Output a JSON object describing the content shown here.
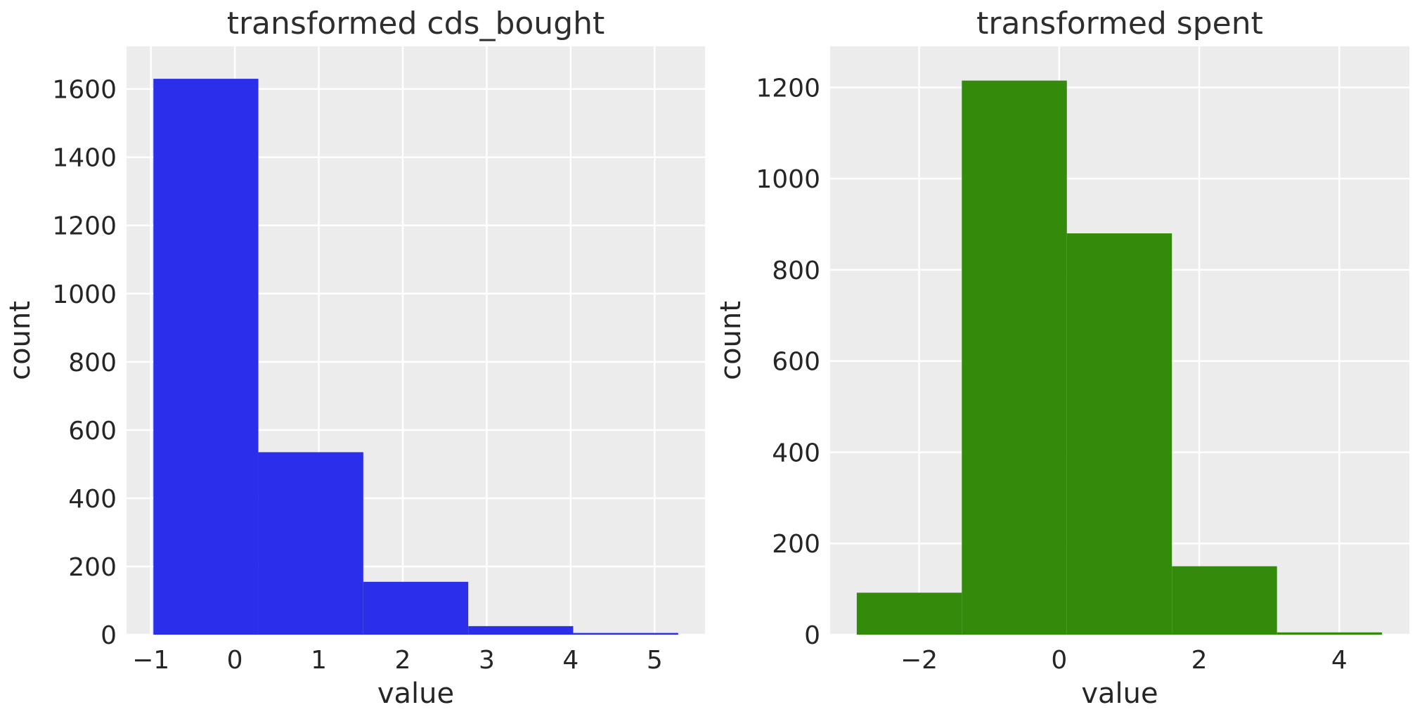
{
  "figure": {
    "background": "#ffffff",
    "plot_background": "#ececec",
    "grid_color": "#ffffff",
    "text_color": "#262626",
    "grid": true
  },
  "chart_data": [
    {
      "type": "bar",
      "subtype": "histogram",
      "title": "transformed cds_bought",
      "xlabel": "value",
      "ylabel": "count",
      "bar_color": "#2b2fe9",
      "bar_color_name": "blue",
      "bin_edges": [
        -0.97,
        0.28,
        1.53,
        2.78,
        4.03,
        5.28
      ],
      "counts": [
        1630,
        535,
        155,
        25,
        5
      ],
      "xlim": [
        -1.29,
        5.6
      ],
      "ylim": [
        0,
        1725
      ],
      "xticks": [
        -1,
        0,
        1,
        2,
        3,
        4,
        5
      ],
      "xtick_labels": [
        "−1",
        "0",
        "1",
        "2",
        "3",
        "4",
        "5"
      ],
      "yticks": [
        0,
        200,
        400,
        600,
        800,
        1000,
        1200,
        1400,
        1600
      ],
      "ytick_labels": [
        "0",
        "200",
        "400",
        "600",
        "800",
        "1000",
        "1200",
        "1400",
        "1600"
      ],
      "grid": true,
      "legend": "none"
    },
    {
      "type": "bar",
      "subtype": "histogram",
      "title": "transformed spent",
      "xlabel": "value",
      "ylabel": "count",
      "bar_color": "#348b0b",
      "bar_color_name": "green",
      "bin_edges": [
        -2.89,
        -1.39,
        0.11,
        1.61,
        3.11,
        4.61
      ],
      "counts": [
        92,
        1215,
        880,
        150,
        5
      ],
      "xlim": [
        -3.27,
        5.0
      ],
      "ylim": [
        0,
        1290
      ],
      "xticks": [
        -2,
        0,
        2,
        4
      ],
      "xtick_labels": [
        "−2",
        "0",
        "2",
        "4"
      ],
      "yticks": [
        0,
        200,
        400,
        600,
        800,
        1000,
        1200
      ],
      "ytick_labels": [
        "0",
        "200",
        "400",
        "600",
        "800",
        "1000",
        "1200"
      ],
      "grid": true,
      "legend": "none"
    }
  ]
}
